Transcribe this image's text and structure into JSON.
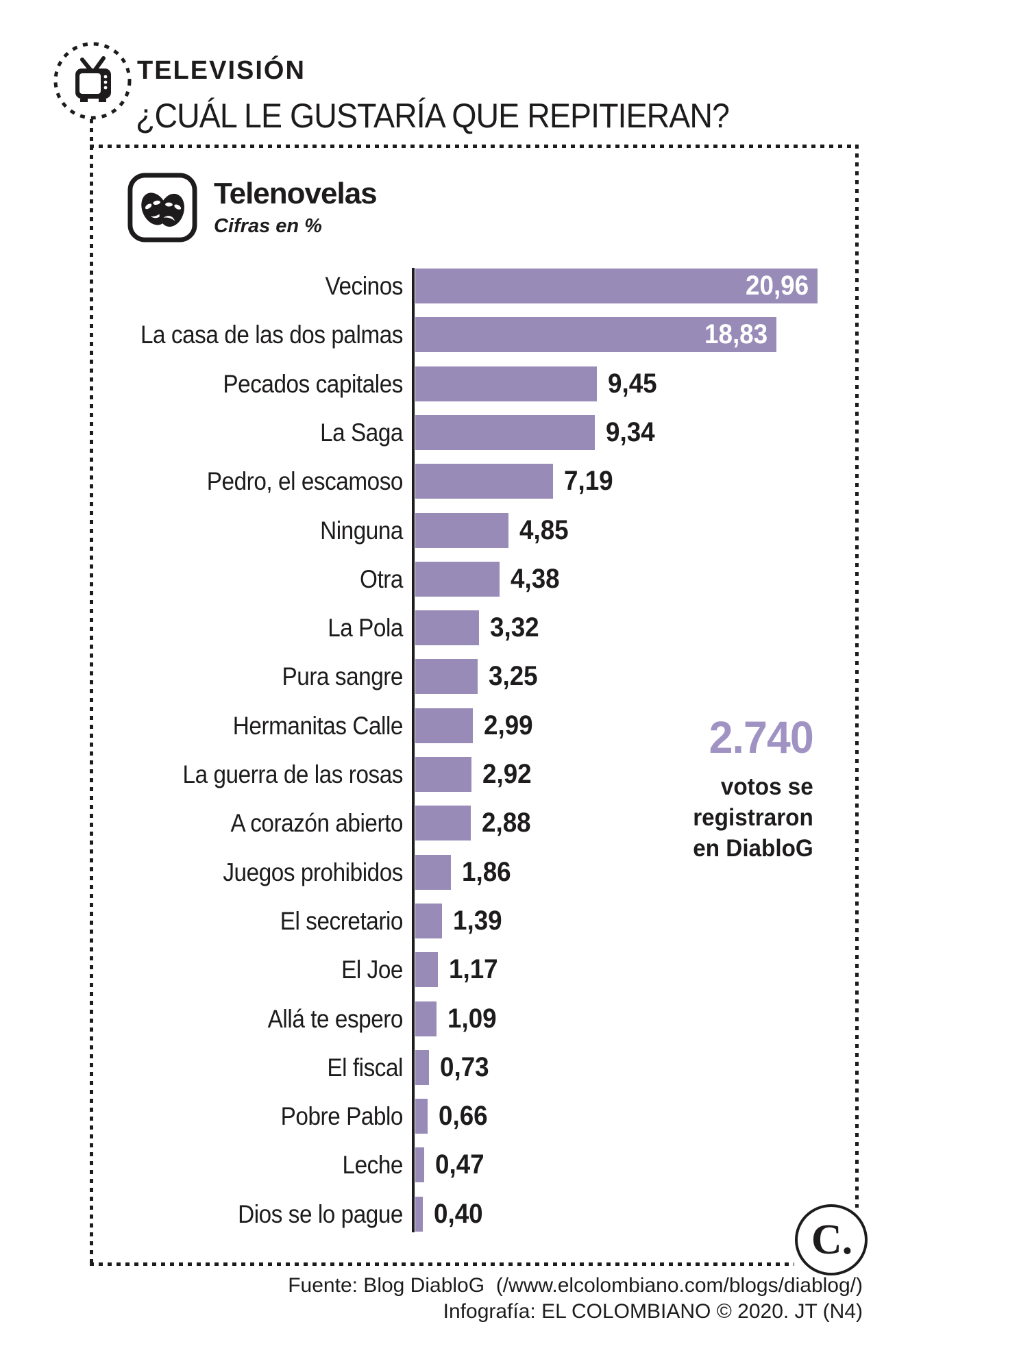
{
  "header": {
    "kicker": "TELEVISIÓN",
    "title": "¿CUÁL LE GUSTARÍA QUE REPITIERAN?"
  },
  "section": {
    "title": "Telenovelas",
    "subtitle": "Cifras en %",
    "icon": "theater-masks-icon"
  },
  "chart_data": {
    "type": "bar",
    "orientation": "horizontal",
    "title": "Telenovelas",
    "units_note": "Cifras en %",
    "categories": [
      "Vecinos",
      "La casa de las dos palmas",
      "Pecados capitales",
      "La Saga",
      "Pedro, el escamoso",
      "Ninguna",
      "Otra",
      "La Pola",
      "Pura sangre",
      "Hermanitas Calle",
      "La guerra de las rosas",
      "A corazón abierto",
      "Juegos prohibidos",
      "El secretario",
      "El Joe",
      "Allá te espero",
      "El fiscal",
      "Pobre Pablo",
      "Leche",
      "Dios se lo pague"
    ],
    "values": [
      20.96,
      18.83,
      9.45,
      9.34,
      7.19,
      4.85,
      4.38,
      3.32,
      3.25,
      2.99,
      2.92,
      2.88,
      1.86,
      1.39,
      1.17,
      1.09,
      0.73,
      0.66,
      0.47,
      0.4
    ],
    "value_labels": [
      "20,96",
      "18,83",
      "9,45",
      "9,34",
      "7,19",
      "4,85",
      "4,38",
      "3,32",
      "3,25",
      "2,99",
      "2,92",
      "2,88",
      "1,86",
      "1,39",
      "1,17",
      "1,09",
      "0,73",
      "0,66",
      "0,47",
      "0,40"
    ],
    "xlim": [
      0,
      21
    ],
    "grid": false,
    "legend": "none",
    "bar_color": "#988bb7",
    "value_label_inside_min": 15
  },
  "callout": {
    "number": "2.740",
    "lines": [
      "votos se",
      "registraron",
      "en DiabloG"
    ],
    "number_color": "#a093c3"
  },
  "footer": {
    "source": "Fuente: Blog DiabloG  (/www.elcolombiano.com/blogs/diablog/)",
    "credit": "Infografía: EL COLOMBIANO © 2020. JT (N4)"
  },
  "logo": {
    "text": "C."
  },
  "colors": {
    "ink": "#1d1b1c",
    "bar": "#988bb7",
    "accent_number": "#a093c3"
  }
}
